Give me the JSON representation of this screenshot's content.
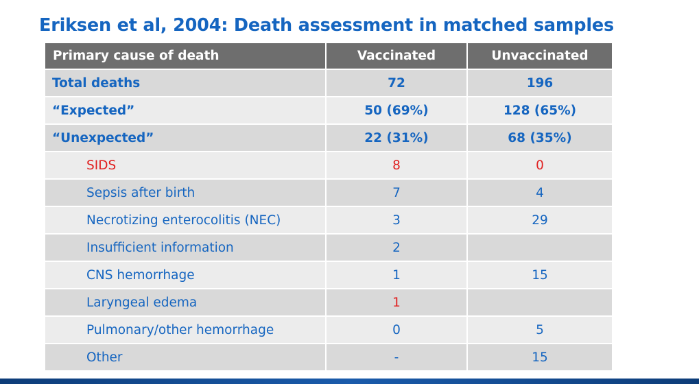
{
  "title": "Eriksen et al, 2004: Death assessment in matched samples",
  "table": {
    "headers": {
      "cause": "Primary cause of death",
      "vaccinated": "Vaccinated",
      "unvaccinated": "Unvaccinated"
    },
    "rows": [
      {
        "cause": "Total deaths",
        "vaccinated": "72",
        "unvaccinated": "196"
      },
      {
        "cause": "“Expected”",
        "vaccinated": "50 (69%)",
        "unvaccinated": "128 (65%)"
      },
      {
        "cause": "“Unexpected”",
        "vaccinated": "22 (31%)",
        "unvaccinated": "68 (35%)"
      },
      {
        "cause": "SIDS",
        "vaccinated": "8",
        "unvaccinated": "0"
      },
      {
        "cause": "Sepsis after birth",
        "vaccinated": "7",
        "unvaccinated": "4"
      },
      {
        "cause": "Necrotizing enterocolitis (NEC)",
        "vaccinated": "3",
        "unvaccinated": "29"
      },
      {
        "cause": "Insufficient information",
        "vaccinated": "2",
        "unvaccinated": ""
      },
      {
        "cause": "CNS hemorrhage",
        "vaccinated": "1",
        "unvaccinated": "15"
      },
      {
        "cause": "Laryngeal edema",
        "vaccinated": "1",
        "unvaccinated": ""
      },
      {
        "cause": "Pulmonary/other hemorrhage",
        "vaccinated": "0",
        "unvaccinated": "5"
      },
      {
        "cause": "Other",
        "vaccinated": "-",
        "unvaccinated": "15"
      }
    ]
  },
  "colors": {
    "title": "#1565c0",
    "body_text": "#1565c0",
    "highlight": "#e02020",
    "header_bg": "#6e6e6e",
    "row_dark": "#d9d9d9",
    "row_light": "#ececec",
    "bottom_bar": "#1a5bab"
  }
}
